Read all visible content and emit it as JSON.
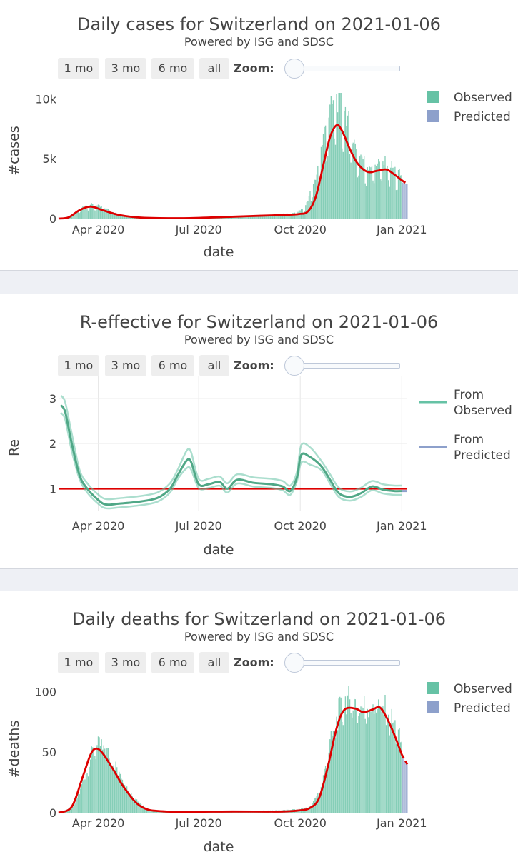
{
  "charts": [
    {
      "title": "Daily cases for Switzerland on 2021-01-06",
      "subtitle": "Powered by ISG and SDSC",
      "buttons": [
        "1 mo",
        "3 mo",
        "6 mo",
        "all"
      ],
      "zoom_label": "Zoom:"
    },
    {
      "title": "R-effective for Switzerland on 2021-01-06",
      "subtitle": "Powered by ISG and SDSC",
      "buttons": [
        "1 mo",
        "3 mo",
        "6 mo",
        "all"
      ],
      "zoom_label": "Zoom:"
    },
    {
      "title": "Daily deaths for Switzerland on 2021-01-06",
      "subtitle": "Powered by ISG and SDSC",
      "buttons": [
        "1 mo",
        "3 mo",
        "6 mo",
        "all"
      ],
      "zoom_label": "Zoom:"
    }
  ],
  "colors": {
    "observed": "#66c2a5",
    "predicted": "#8da0cb",
    "fit": "#dd0000"
  },
  "chart_data": [
    {
      "type": "bar",
      "title": "Daily cases for Switzerland on 2021-01-06",
      "xlabel": "date",
      "ylabel": "#cases",
      "x_range": [
        "2020-02-25",
        "2021-01-06"
      ],
      "ylim": [
        0,
        10500
      ],
      "x_ticks": [
        {
          "date": "2020-04-01",
          "label": "Apr 2020"
        },
        {
          "date": "2020-07-01",
          "label": "Jul 2020"
        },
        {
          "date": "2020-10-01",
          "label": "Oct 2020"
        },
        {
          "date": "2021-01-01",
          "label": "Jan 2021"
        }
      ],
      "y_ticks": [
        {
          "value": 0,
          "label": "0"
        },
        {
          "value": 5000,
          "label": "5k"
        },
        {
          "value": 10000,
          "label": "10k"
        }
      ],
      "legend": {
        "position": "top-right",
        "entries": [
          "Observed",
          "Predicted"
        ]
      },
      "series": [
        {
          "name": "Observed",
          "kind": "bar",
          "weekly_dip": 0.3,
          "noise": 0.12,
          "points": [
            [
              "2020-02-25",
              0
            ],
            [
              "2020-03-05",
              100
            ],
            [
              "2020-03-15",
              700
            ],
            [
              "2020-03-22",
              1100
            ],
            [
              "2020-03-30",
              1000
            ],
            [
              "2020-04-10",
              700
            ],
            [
              "2020-04-20",
              300
            ],
            [
              "2020-05-01",
              120
            ],
            [
              "2020-06-01",
              30
            ],
            [
              "2020-07-01",
              100
            ],
            [
              "2020-08-01",
              180
            ],
            [
              "2020-09-01",
              280
            ],
            [
              "2020-09-25",
              400
            ],
            [
              "2020-10-05",
              800
            ],
            [
              "2020-10-15",
              3000
            ],
            [
              "2020-10-25",
              7500
            ],
            [
              "2020-11-02",
              9200
            ],
            [
              "2020-11-10",
              8500
            ],
            [
              "2020-11-20",
              5500
            ],
            [
              "2020-12-01",
              4000
            ],
            [
              "2020-12-10",
              4300
            ],
            [
              "2020-12-20",
              4200
            ],
            [
              "2020-12-30",
              3400
            ],
            [
              "2021-01-01",
              3200
            ]
          ]
        },
        {
          "name": "Predicted",
          "kind": "bar",
          "points": [
            [
              "2021-01-02",
              3000
            ],
            [
              "2021-01-06",
              2900
            ]
          ]
        },
        {
          "name": "Fit",
          "kind": "line",
          "points": [
            [
              "2020-02-25",
              0
            ],
            [
              "2020-03-05",
              100
            ],
            [
              "2020-03-15",
              700
            ],
            [
              "2020-03-25",
              1000
            ],
            [
              "2020-04-05",
              700
            ],
            [
              "2020-04-20",
              300
            ],
            [
              "2020-05-10",
              80
            ],
            [
              "2020-06-15",
              30
            ],
            [
              "2020-07-15",
              100
            ],
            [
              "2020-08-15",
              200
            ],
            [
              "2020-09-15",
              300
            ],
            [
              "2020-09-30",
              380
            ],
            [
              "2020-10-08",
              600
            ],
            [
              "2020-10-15",
              1800
            ],
            [
              "2020-10-22",
              4500
            ],
            [
              "2020-10-28",
              6800
            ],
            [
              "2020-11-03",
              7800
            ],
            [
              "2020-11-08",
              7300
            ],
            [
              "2020-11-15",
              5800
            ],
            [
              "2020-11-22",
              4600
            ],
            [
              "2020-12-01",
              3900
            ],
            [
              "2020-12-10",
              4000
            ],
            [
              "2020-12-18",
              4100
            ],
            [
              "2020-12-25",
              3700
            ],
            [
              "2021-01-01",
              3200
            ],
            [
              "2021-01-06",
              2900
            ]
          ]
        }
      ]
    },
    {
      "type": "line",
      "title": "R-effective for Switzerland on 2021-01-06",
      "xlabel": "date",
      "ylabel": "Re",
      "x_range": [
        "2020-02-25",
        "2021-01-06"
      ],
      "ylim": [
        0.5,
        3.3
      ],
      "x_ticks": [
        {
          "date": "2020-04-01",
          "label": "Apr 2020"
        },
        {
          "date": "2020-07-01",
          "label": "Jul 2020"
        },
        {
          "date": "2020-10-01",
          "label": "Oct 2020"
        },
        {
          "date": "2021-01-01",
          "label": "Jan 2021"
        }
      ],
      "y_ticks": [
        {
          "value": 1,
          "label": "1"
        },
        {
          "value": 2,
          "label": "2"
        },
        {
          "value": 3,
          "label": "3"
        }
      ],
      "grid": true,
      "legend": {
        "position": "top-right",
        "entries": [
          "From Observed",
          "From Predicted"
        ]
      },
      "reference_line": 1,
      "series": [
        {
          "name": "From Observed",
          "kind": "line",
          "band": 0.12,
          "points": [
            [
              "2020-02-27",
              2.85
            ],
            [
              "2020-03-02",
              2.7
            ],
            [
              "2020-03-08",
              2.0
            ],
            [
              "2020-03-15",
              1.3
            ],
            [
              "2020-03-22",
              1.0
            ],
            [
              "2020-04-01",
              0.75
            ],
            [
              "2020-04-08",
              0.65
            ],
            [
              "2020-04-20",
              0.67
            ],
            [
              "2020-05-10",
              0.72
            ],
            [
              "2020-05-25",
              0.8
            ],
            [
              "2020-06-05",
              1.0
            ],
            [
              "2020-06-12",
              1.3
            ],
            [
              "2020-06-20",
              1.62
            ],
            [
              "2020-06-24",
              1.6
            ],
            [
              "2020-07-01",
              1.1
            ],
            [
              "2020-07-10",
              1.1
            ],
            [
              "2020-07-20",
              1.15
            ],
            [
              "2020-07-27",
              1.0
            ],
            [
              "2020-08-05",
              1.2
            ],
            [
              "2020-08-20",
              1.13
            ],
            [
              "2020-09-05",
              1.1
            ],
            [
              "2020-09-15",
              1.05
            ],
            [
              "2020-09-22",
              0.95
            ],
            [
              "2020-09-28",
              1.25
            ],
            [
              "2020-10-02",
              1.75
            ],
            [
              "2020-10-10",
              1.7
            ],
            [
              "2020-10-20",
              1.5
            ],
            [
              "2020-10-28",
              1.2
            ],
            [
              "2020-11-05",
              0.9
            ],
            [
              "2020-11-15",
              0.82
            ],
            [
              "2020-11-25",
              0.9
            ],
            [
              "2020-12-05",
              1.05
            ],
            [
              "2020-12-15",
              0.98
            ],
            [
              "2020-12-25",
              0.95
            ],
            [
              "2021-01-01",
              0.95
            ]
          ]
        },
        {
          "name": "From Predicted",
          "kind": "line",
          "points": [
            [
              "2021-01-01",
              0.95
            ],
            [
              "2021-01-06",
              0.95
            ]
          ]
        }
      ]
    },
    {
      "type": "bar",
      "title": "Daily deaths for Switzerland on 2021-01-06",
      "xlabel": "date",
      "ylabel": "#deaths",
      "x_range": [
        "2020-02-25",
        "2021-01-06"
      ],
      "ylim": [
        0,
        105
      ],
      "x_ticks": [
        {
          "date": "2020-04-01",
          "label": "Apr 2020"
        },
        {
          "date": "2020-07-01",
          "label": "Jul 2020"
        },
        {
          "date": "2020-10-01",
          "label": "Oct 2020"
        },
        {
          "date": "2021-01-01",
          "label": "Jan 2021"
        }
      ],
      "y_ticks": [
        {
          "value": 0,
          "label": "0"
        },
        {
          "value": 50,
          "label": "50"
        },
        {
          "value": 100,
          "label": "100"
        }
      ],
      "legend": {
        "position": "top-right",
        "entries": [
          "Observed",
          "Predicted"
        ]
      },
      "series": [
        {
          "name": "Observed",
          "kind": "bar",
          "weekly_dip": 0.08,
          "noise": 0.15,
          "points": [
            [
              "2020-02-25",
              0
            ],
            [
              "2020-03-10",
              5
            ],
            [
              "2020-03-20",
              30
            ],
            [
              "2020-03-28",
              52
            ],
            [
              "2020-04-05",
              55
            ],
            [
              "2020-04-12",
              45
            ],
            [
              "2020-04-20",
              33
            ],
            [
              "2020-05-01",
              15
            ],
            [
              "2020-05-15",
              3
            ],
            [
              "2020-06-01",
              1
            ],
            [
              "2020-08-01",
              1
            ],
            [
              "2020-09-15",
              2
            ],
            [
              "2020-10-01",
              3
            ],
            [
              "2020-10-10",
              5
            ],
            [
              "2020-10-20",
              20
            ],
            [
              "2020-10-28",
              55
            ],
            [
              "2020-11-05",
              80
            ],
            [
              "2020-11-12",
              92
            ],
            [
              "2020-11-25",
              85
            ],
            [
              "2020-12-08",
              88
            ],
            [
              "2020-12-18",
              82
            ],
            [
              "2020-12-26",
              70
            ],
            [
              "2021-01-01",
              55
            ]
          ]
        },
        {
          "name": "Predicted",
          "kind": "bar",
          "points": [
            [
              "2021-01-02",
              46
            ],
            [
              "2021-01-06",
              40
            ]
          ]
        },
        {
          "name": "Fit",
          "kind": "line",
          "points": [
            [
              "2020-02-25",
              0
            ],
            [
              "2020-03-08",
              5
            ],
            [
              "2020-03-18",
              30
            ],
            [
              "2020-03-25",
              48
            ],
            [
              "2020-03-30",
              53
            ],
            [
              "2020-04-05",
              49
            ],
            [
              "2020-04-15",
              35
            ],
            [
              "2020-04-25",
              20
            ],
            [
              "2020-05-10",
              5
            ],
            [
              "2020-06-01",
              1
            ],
            [
              "2020-08-01",
              1
            ],
            [
              "2020-09-15",
              1
            ],
            [
              "2020-10-01",
              2
            ],
            [
              "2020-10-10",
              4
            ],
            [
              "2020-10-18",
              12
            ],
            [
              "2020-10-26",
              38
            ],
            [
              "2020-11-03",
              70
            ],
            [
              "2020-11-10",
              85
            ],
            [
              "2020-11-20",
              86
            ],
            [
              "2020-11-27",
              83
            ],
            [
              "2020-12-05",
              85
            ],
            [
              "2020-12-12",
              87
            ],
            [
              "2020-12-18",
              79
            ],
            [
              "2020-12-25",
              65
            ],
            [
              "2021-01-01",
              48
            ],
            [
              "2021-01-06",
              40
            ]
          ]
        }
      ]
    }
  ]
}
